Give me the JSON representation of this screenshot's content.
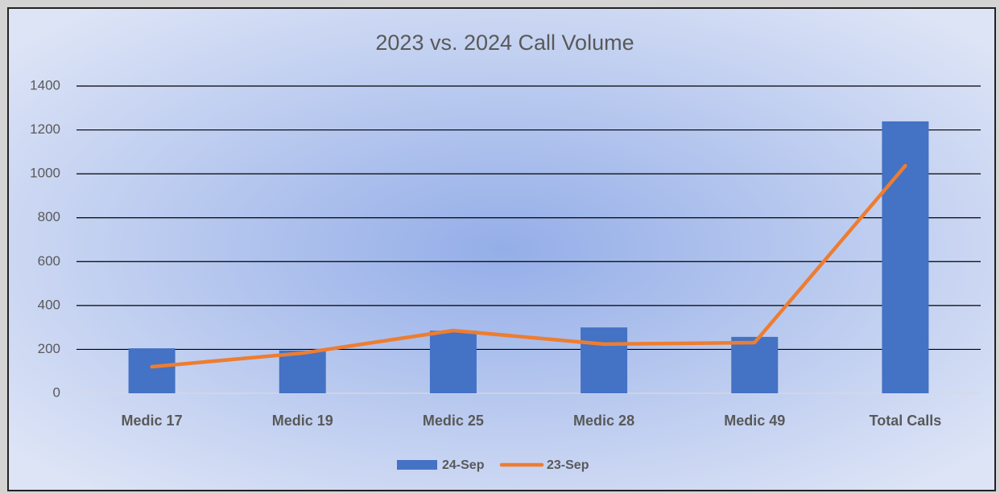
{
  "chart_data": {
    "type": "combo",
    "title": "2023 vs. 2024 Call Volume",
    "categories": [
      "Medic 17",
      "Medic 19",
      "Medic 25",
      "Medic 28",
      "Medic 49",
      "Total Calls"
    ],
    "series": [
      {
        "name": "24-Sep",
        "type": "bar",
        "color": "#4472c4",
        "values": [
          205,
          195,
          285,
          300,
          257,
          1239
        ]
      },
      {
        "name": "23-Sep",
        "type": "line",
        "color": "#ed7d31",
        "values": [
          121,
          183,
          286,
          224,
          231,
          1037
        ]
      }
    ],
    "ylim": [
      0,
      1400
    ],
    "yticks": [
      0,
      200,
      400,
      600,
      800,
      1000,
      1200,
      1400
    ],
    "grid": true,
    "legend": "bottom"
  }
}
